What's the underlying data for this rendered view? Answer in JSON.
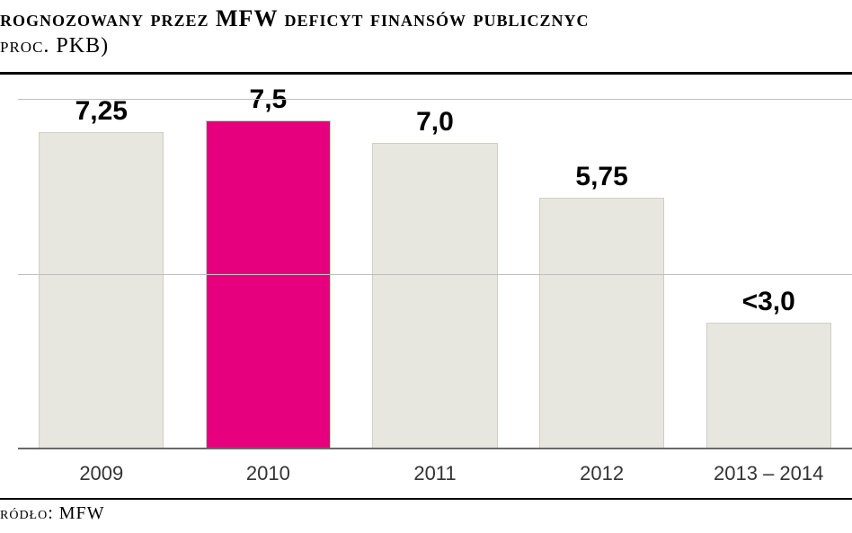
{
  "title": {
    "line1": "rognozowany przez MFW deficyt finansów publicznyc",
    "line2": "proc. PKB)",
    "color": "#000000",
    "fontsize_main": 26,
    "fontsize_sub": 24
  },
  "source": {
    "label": "ródło: MFW",
    "fontsize": 20
  },
  "chart": {
    "type": "bar",
    "ylim": [
      0,
      8
    ],
    "ytick_positions": [
      0,
      4,
      8
    ],
    "ytick_labels": [
      "0",
      "4",
      "8"
    ],
    "grid_color": "#bfbfbf",
    "baseline_color": "#6a6a6a",
    "background_color": "#ffffff",
    "label_fontsize": 30,
    "xtick_fontsize": 22,
    "bar_width_ratio": 0.75,
    "categories": [
      "2009",
      "2010",
      "2011",
      "2012",
      "2013 – 2014"
    ],
    "values": [
      7.25,
      7.5,
      7.0,
      5.75,
      2.9
    ],
    "value_labels": [
      "7,25",
      "7,5",
      "7,0",
      "5,75",
      "<3,0"
    ],
    "bar_colors": [
      "#e7e6df",
      "#e6007e",
      "#e7e6df",
      "#e7e6df",
      "#e7e6df"
    ],
    "bar_border_color": "#d0cfc6"
  }
}
